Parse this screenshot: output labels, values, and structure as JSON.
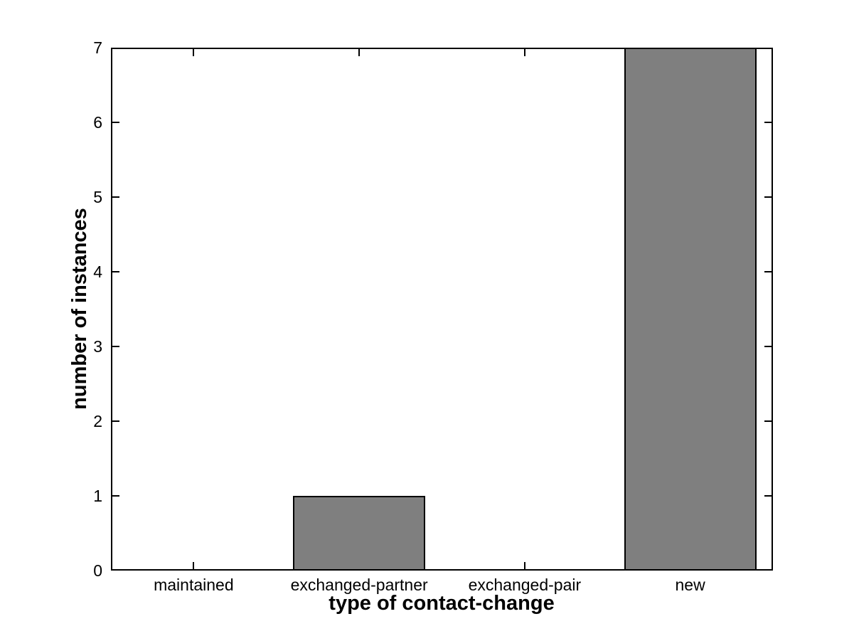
{
  "chart_data": {
    "type": "bar",
    "categories": [
      "maintained",
      "exchanged-partner",
      "exchanged-pair",
      "new"
    ],
    "values": [
      0,
      1,
      0,
      7
    ],
    "title": "",
    "xlabel": "type of contact-change",
    "ylabel": "number of instances",
    "ylim": [
      0,
      7
    ],
    "yticks": [
      0,
      1,
      2,
      3,
      4,
      5,
      6,
      7
    ],
    "bar_width_fraction": 0.8,
    "grid": false,
    "legend": "none",
    "box": true,
    "tick_direction": "in",
    "colors": {
      "bar_fill": "#7f7f7f",
      "bar_edge": "#000000",
      "axis": "#000000",
      "text": "#000000",
      "background": "#ffffff"
    }
  }
}
